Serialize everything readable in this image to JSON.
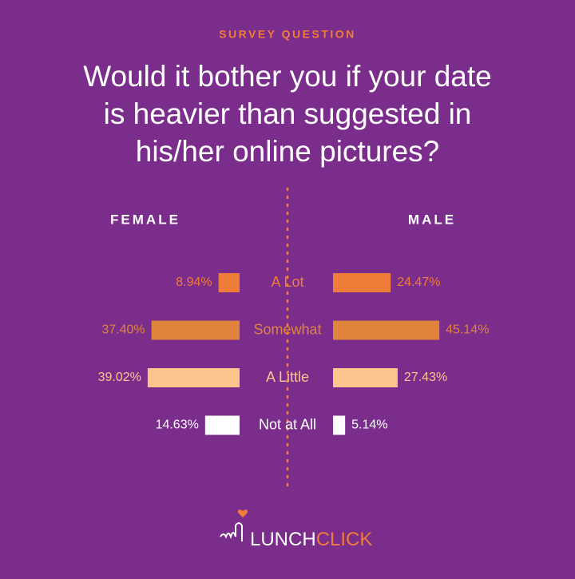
{
  "header": {
    "kicker": "SURVEY QUESTION",
    "question_lines": [
      "Would it bother you if your date",
      "is heavier than suggested in",
      "his/her online pictures?"
    ]
  },
  "chart_data": {
    "type": "diverging-bar",
    "categories": [
      "A Lot",
      "Somewhat",
      "A Little",
      "Not at All"
    ],
    "category_colors": [
      "#f07c3a",
      "#e0843d",
      "#fbc58d",
      "#ffffff"
    ],
    "series": [
      {
        "name": "FEMALE",
        "values": [
          8.94,
          37.4,
          39.02,
          14.63
        ],
        "value_labels": [
          "8.94%",
          "37.40%",
          "39.02%",
          "14.63%"
        ]
      },
      {
        "name": "MALE",
        "values": [
          24.47,
          45.14,
          27.43,
          5.14
        ],
        "value_labels": [
          "24.47%",
          "45.14%",
          "27.43%",
          "5.14%"
        ]
      }
    ]
  },
  "footer": {
    "logo_parts": [
      "LUNCH",
      "CLICK"
    ]
  }
}
